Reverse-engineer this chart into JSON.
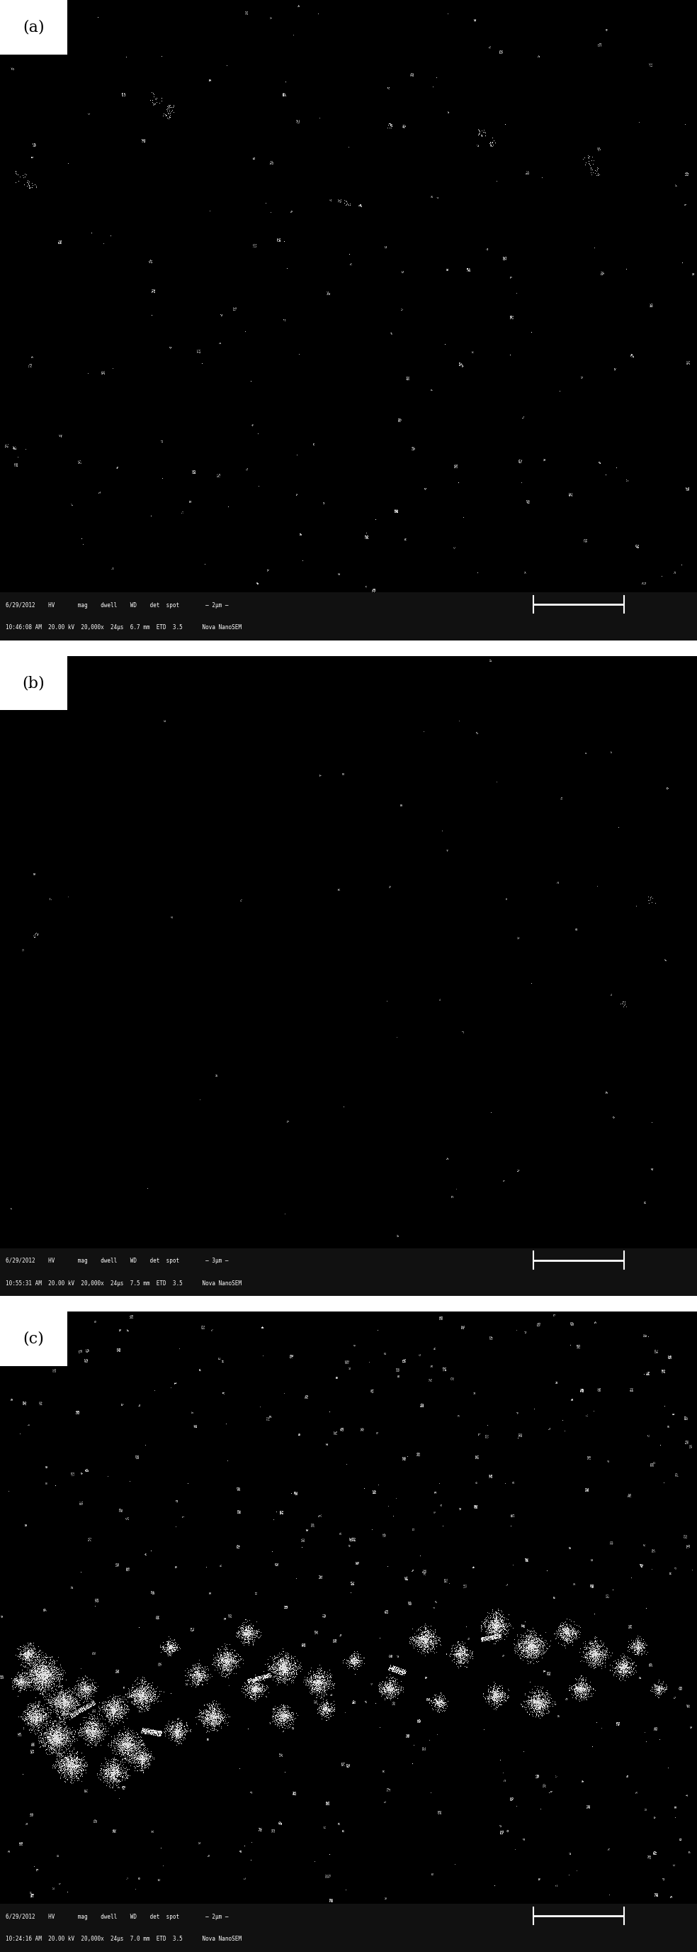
{
  "panels": [
    {
      "label": "(a)",
      "metadata_line1": "6/29/2012    HV       mag    dwell    WD    det  spot        — 2μm —",
      "metadata_line2": "10:46:08 AM  20.00 kV  20,000x  24μs  6.7 mm  ETD  3.5      Nova NanoSEM"
    },
    {
      "label": "(b)",
      "metadata_line1": "6/29/2012    HV       mag    dwell    WD    det  spot        — 3μm —",
      "metadata_line2": "10:55:31 AM  20.00 kV  20,000x  24μs  7.5 mm  ETD  3.5      Nova NanoSEM"
    },
    {
      "label": "(c)",
      "metadata_line1": "6/29/2012    HV       mag    dwell    WD    det  spot        — 2μm —",
      "metadata_line2": "10:24:16 AM  20.00 kV  20,000x  24μs  7.0 mm  ETD  3.5      Nova NanoSEM"
    }
  ],
  "background_color": "#000000",
  "label_box_color": "#ffffff",
  "label_text_color": "#000000",
  "metadata_text_color": "#ffffff",
  "figure_bg": "#ffffff",
  "label_fontsize": 16,
  "metadata_fontsize": 6.0,
  "scalebar_color": "#ffffff"
}
